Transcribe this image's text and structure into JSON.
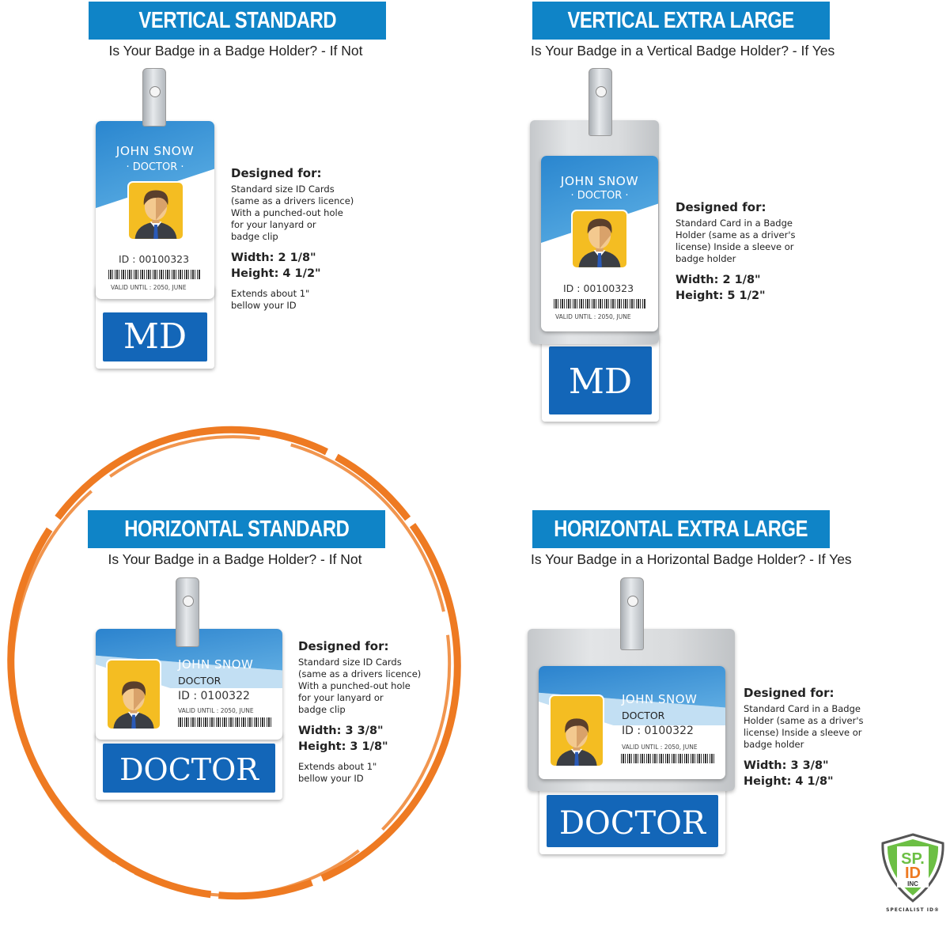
{
  "colors": {
    "banner": "#0f84c7",
    "tab_blue": "#1366b8",
    "highlight_circle": "#ee7a22",
    "photo_bg": "#f4bd22"
  },
  "panels": [
    {
      "title": "VERTICAL STANDARD",
      "subtitle": "Is Your Badge in a Badge Holder? - If Not",
      "card": {
        "name": "JOHN SNOW",
        "role": "· DOCTOR ·",
        "id": "ID : 00100323",
        "valid": "VALID UNTIL : 2050, JUNE",
        "tab": "MD"
      },
      "designed_for": "Designed for:",
      "desc": [
        "Standard size ID Cards",
        "(same as a drivers licence)",
        "With a punched-out hole",
        "for your lanyard or",
        "badge clip"
      ],
      "width": "Width: 2 1/8\"",
      "height": "Height: 4 1/2\"",
      "extends": [
        "Extends about 1\"",
        "bellow your ID"
      ]
    },
    {
      "title": "VERTICAL  EXTRA LARGE",
      "subtitle": "Is Your Badge in a Vertical Badge Holder? - If Yes",
      "card": {
        "name": "JOHN SNOW",
        "role": "· DOCTOR ·",
        "id": "ID : 00100323",
        "valid": "VALID UNTIL : 2050, JUNE",
        "tab": "MD"
      },
      "designed_for": "Designed for:",
      "desc": [
        "Standard Card in a Badge",
        "Holder (same as a driver's",
        "license) Inside a sleeve or",
        "badge holder"
      ],
      "width": "Width: 2 1/8\"",
      "height": "Height: 5 1/2\""
    },
    {
      "title": "HORIZONTAL STANDARD",
      "subtitle": "Is Your Badge in a Badge Holder? - If Not",
      "highlighted": true,
      "card": {
        "name": "JOHN SNOW",
        "role": "DOCTOR",
        "id": "ID : 0100322",
        "valid": "VALID UNTIL : 2050, JUNE",
        "tab": "DOCTOR"
      },
      "designed_for": "Designed for:",
      "desc": [
        "Standard size ID Cards",
        "(same as a drivers licence)",
        "With a punched-out hole",
        "for your lanyard or",
        "badge clip"
      ],
      "width": "Width: 3 3/8\"",
      "height": "Height: 3 1/8\"",
      "extends": [
        "Extends about 1\"",
        "bellow your ID"
      ]
    },
    {
      "title": "HORIZONTAL  EXTRA LARGE",
      "subtitle": "Is Your Badge in a Horizontal Badge Holder? - If Yes",
      "card": {
        "name": "JOHN SNOW",
        "role": "DOCTOR",
        "id": "ID : 0100322",
        "valid": "VALID UNTIL : 2050, JUNE",
        "tab": "DOCTOR"
      },
      "designed_for": "Designed for:",
      "desc": [
        "Standard Card in a Badge",
        "Holder (same as a driver's",
        "license) Inside a sleeve or",
        "badge holder"
      ],
      "width": "Width: 3 3/8\"",
      "height": "Height: 4 1/8\""
    }
  ],
  "logo": {
    "top": "SPECIALIST ID",
    "mark": "SP. ID",
    "inc": "INC",
    "caption": "SPECIALIST ID®"
  }
}
